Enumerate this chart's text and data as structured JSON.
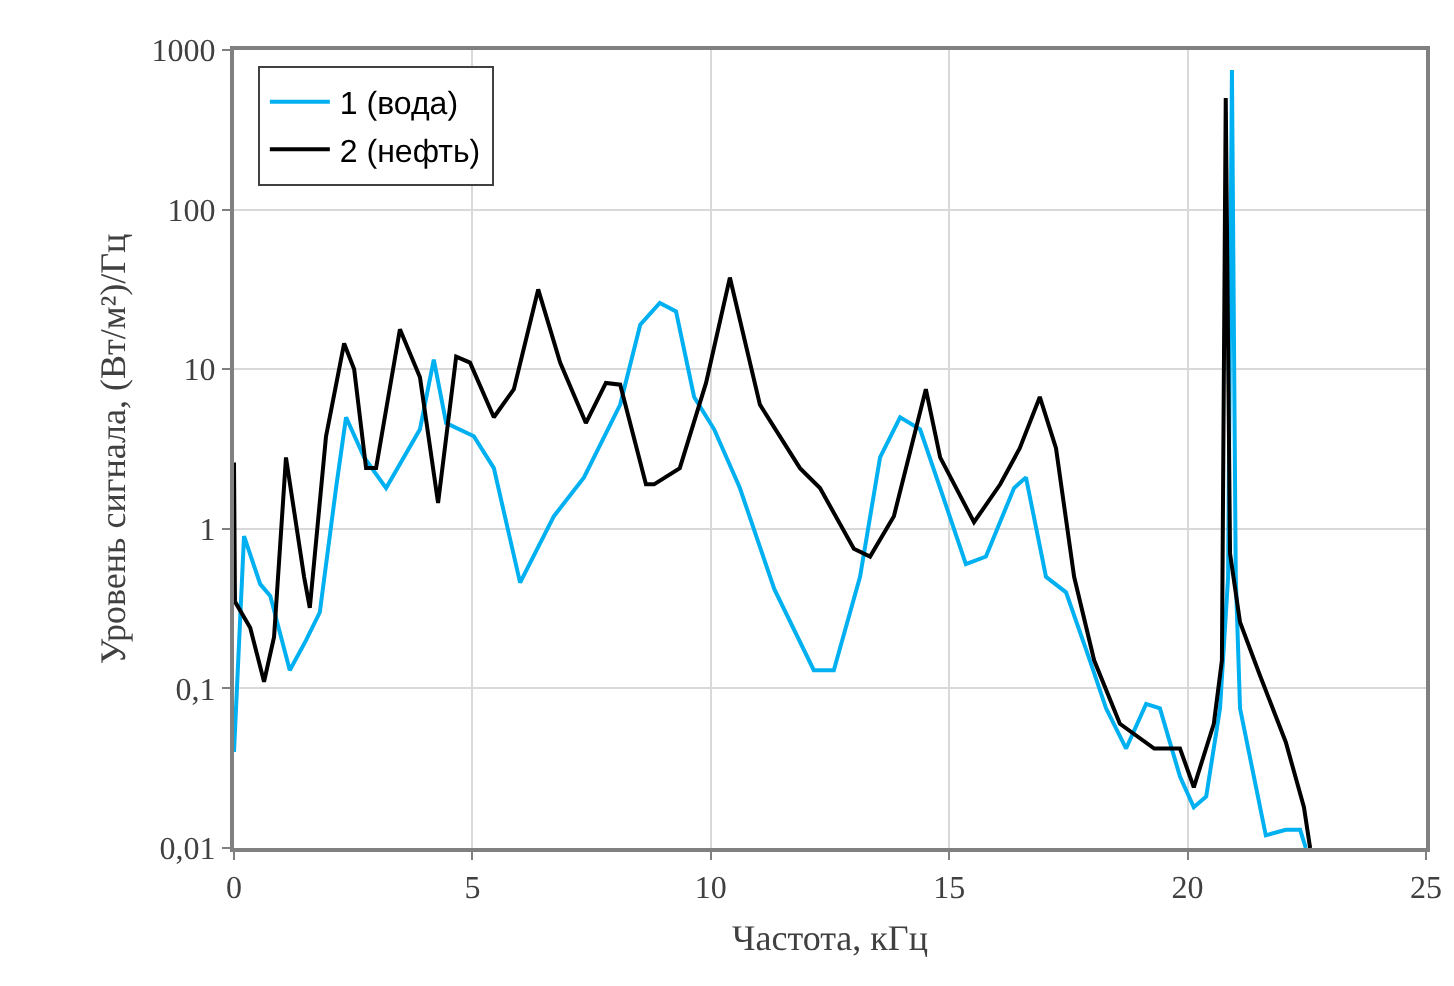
{
  "chart_data": {
    "type": "line",
    "xlabel": "Частота, кГц",
    "ylabel": "Уровень сигнала, (Вт/м²)/Гц",
    "log": "y",
    "grid": true,
    "legend": "top left",
    "marker": "none",
    "line_style": "solid",
    "xlim": [
      0,
      25
    ],
    "xticks": [
      0,
      5,
      10,
      15,
      20,
      25
    ],
    "ylim": [
      0.01,
      1000
    ],
    "yticks": [
      {
        "value": 0.01,
        "label": "0,01"
      },
      {
        "value": 0.1,
        "label": "0,1"
      },
      1,
      10,
      100,
      1000
    ],
    "series": [
      {
        "name": "1 (вода)",
        "color": "#00b0f0",
        "x": [
          0,
          0.21,
          0.55,
          0.76,
          1.17,
          1.51,
          1.8,
          2.14,
          2.35,
          2.73,
          3.19,
          3.9,
          4.19,
          4.45,
          5.03,
          5.45,
          6.0,
          6.71,
          7.34,
          8.1,
          8.52,
          8.93,
          9.27,
          9.65,
          10.07,
          10.61,
          11.33,
          12.16,
          12.58,
          13.13,
          13.55,
          13.97,
          14.39,
          14.81,
          15.35,
          15.77,
          16.36,
          16.61,
          17.03,
          17.45,
          17.95,
          18.29,
          18.71,
          19.13,
          19.42,
          19.84,
          20.13,
          20.39,
          20.68,
          20.85,
          20.93,
          21.01,
          21.1,
          21.39,
          21.64,
          22.06,
          22.36,
          22.48
        ],
        "values": [
          0.04,
          0.9,
          0.45,
          0.38,
          0.13,
          0.2,
          0.3,
          1.8,
          5,
          2.8,
          1.8,
          4.2,
          11.5,
          4.6,
          3.8,
          2.4,
          0.46,
          1.2,
          2.1,
          6,
          19,
          26,
          23,
          6.7,
          4.2,
          1.8,
          0.42,
          0.13,
          0.13,
          0.5,
          2.8,
          5,
          4.2,
          1.8,
          0.6,
          0.67,
          1.8,
          2.1,
          0.5,
          0.4,
          0.15,
          0.075,
          0.042,
          0.08,
          0.075,
          0.028,
          0.018,
          0.021,
          0.075,
          0.5,
          750,
          0.5,
          0.075,
          0.028,
          0.012,
          0.013,
          0.013,
          0.01
        ]
      },
      {
        "name": "2 (нефть)",
        "color": "#000000",
        "x": [
          0,
          0.02,
          0.34,
          0.63,
          0.84,
          1.09,
          1.47,
          1.59,
          1.93,
          2.31,
          2.52,
          2.77,
          2.98,
          3.48,
          3.9,
          4.28,
          4.66,
          4.95,
          5.45,
          5.87,
          6.38,
          6.84,
          7.38,
          7.8,
          8.1,
          8.64,
          8.81,
          9.35,
          9.9,
          10.4,
          11.03,
          11.87,
          12.29,
          13.0,
          13.34,
          13.84,
          14.51,
          14.81,
          15.52,
          16.07,
          16.48,
          16.9,
          17.24,
          17.62,
          18.04,
          18.58,
          19.3,
          19.84,
          20.13,
          20.55,
          20.72,
          20.8,
          20.89,
          21.1,
          21.52,
          22.06,
          22.44,
          22.57
        ],
        "values": [
          2.6,
          0.35,
          0.24,
          0.11,
          0.21,
          2.8,
          0.5,
          0.32,
          3.8,
          14.5,
          10,
          2.4,
          2.4,
          17.8,
          8.9,
          1.45,
          12,
          11,
          5,
          7.5,
          31.6,
          11,
          4.6,
          8.2,
          8,
          1.9,
          1.9,
          2.4,
          8.2,
          37.5,
          6,
          2.4,
          1.8,
          0.75,
          0.67,
          1.2,
          7.5,
          2.8,
          1.1,
          1.9,
          3.2,
          6.7,
          3.2,
          0.5,
          0.15,
          0.06,
          0.042,
          0.042,
          0.024,
          0.06,
          0.15,
          500,
          0.7,
          0.26,
          0.12,
          0.046,
          0.018,
          0.01
        ]
      }
    ]
  }
}
